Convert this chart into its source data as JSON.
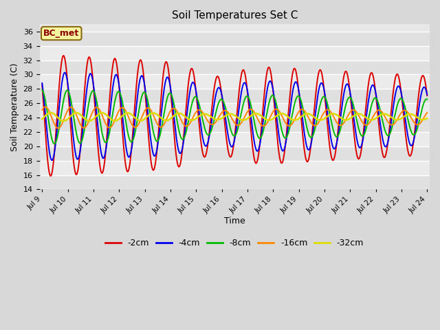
{
  "title": "Soil Temperatures Set C",
  "xlabel": "Time",
  "ylabel": "Soil Temperature (C)",
  "ylim": [
    14,
    37
  ],
  "yticks": [
    14,
    16,
    18,
    20,
    22,
    24,
    26,
    28,
    30,
    32,
    34,
    36
  ],
  "start_day": 9,
  "end_day": 24,
  "period_hours": 24,
  "annotation_text": "BC_met",
  "line_colors": {
    "-2cm": "#dd0000",
    "-4cm": "#0000ee",
    "-8cm": "#00bb00",
    "-16cm": "#ff8800",
    "-32cm": "#dddd00"
  },
  "bg_color": "#d8d8d8",
  "plot_bg_color": "#e8e8e8",
  "grid_color": "#ffffff",
  "legend_labels": [
    "-2cm",
    "-4cm",
    "-8cm",
    "-16cm",
    "-32cm"
  ]
}
